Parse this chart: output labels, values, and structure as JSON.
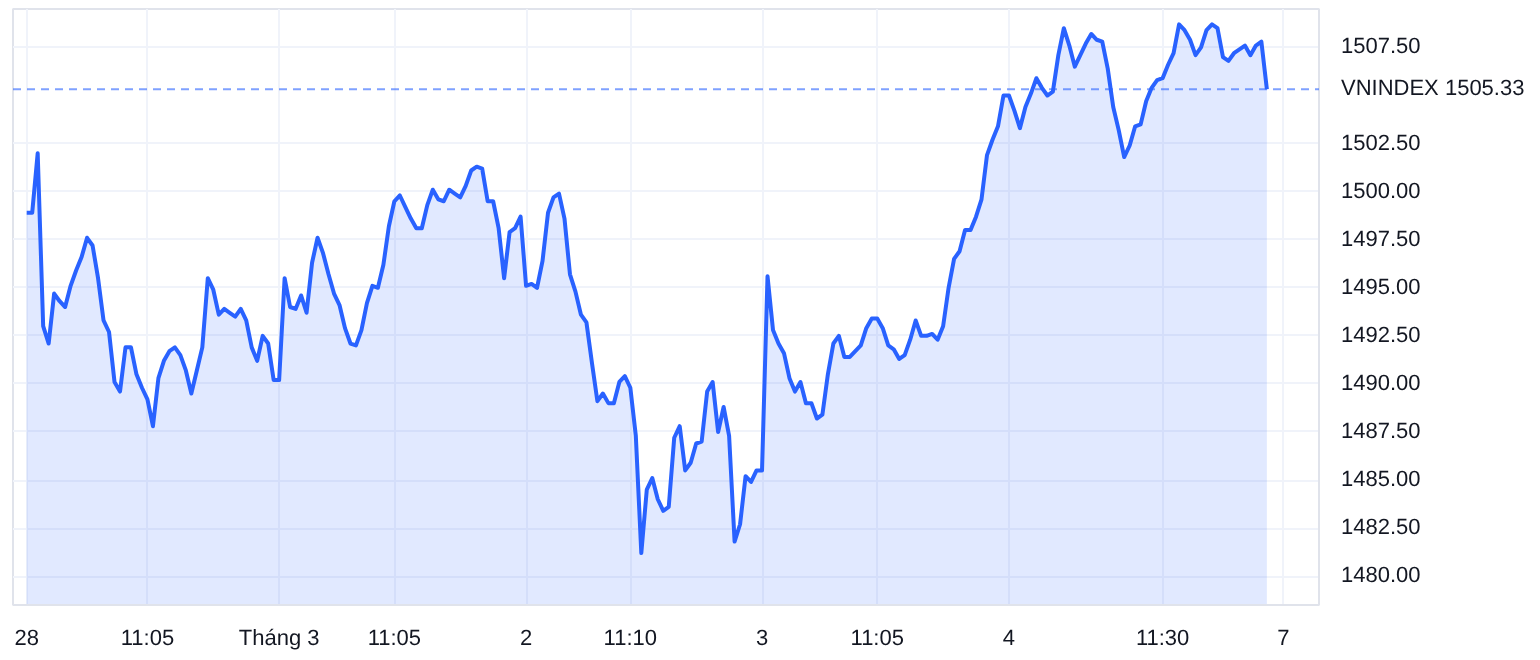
{
  "chart_data": {
    "type": "area",
    "categories": [
      "28",
      null,
      null,
      null,
      null,
      null,
      null,
      null,
      null,
      null,
      null,
      null,
      null,
      null,
      null,
      null,
      null,
      null,
      null,
      null,
      null,
      null,
      "11:05",
      null,
      null,
      null,
      null,
      null,
      null,
      null,
      null,
      null,
      null,
      null,
      null,
      null,
      null,
      null,
      null,
      null,
      null,
      null,
      null,
      null,
      null,
      null,
      "Tháng 3",
      null,
      null,
      null,
      null,
      null,
      null,
      null,
      null,
      null,
      null,
      null,
      null,
      null,
      null,
      null,
      null,
      null,
      null,
      null,
      null,
      "11:05",
      null,
      null,
      null,
      null,
      null,
      null,
      null,
      null,
      null,
      null,
      null,
      null,
      null,
      null,
      null,
      null,
      null,
      null,
      null,
      null,
      null,
      null,
      null,
      "2",
      null,
      null,
      null,
      null,
      null,
      null,
      null,
      null,
      null,
      null,
      null,
      null,
      null,
      null,
      null,
      null,
      null,
      null,
      "11:10",
      null,
      null,
      null,
      null,
      null,
      null,
      null,
      null,
      null,
      null,
      null,
      null,
      null,
      null,
      null,
      null,
      null,
      null,
      null,
      null,
      null,
      null,
      null,
      "3",
      null,
      null,
      null,
      null,
      null,
      null,
      null,
      null,
      null,
      null,
      null,
      null,
      null,
      null,
      null,
      null,
      null,
      null,
      null,
      null,
      "11:05",
      null,
      null,
      null,
      null,
      null,
      null,
      null,
      null,
      null,
      null,
      null,
      null,
      null,
      null,
      null,
      null,
      null,
      null,
      null,
      null,
      null,
      null,
      null,
      "4",
      null,
      null,
      null,
      null,
      null,
      null,
      null,
      null,
      null,
      null,
      null,
      null,
      null,
      null,
      null,
      null,
      null,
      null,
      null,
      null,
      null,
      null,
      null,
      null,
      null,
      null,
      null,
      "11:30",
      null,
      null,
      null,
      null,
      null,
      null,
      null,
      null,
      null,
      null,
      null,
      null,
      null,
      null,
      null,
      null,
      null,
      null,
      null,
      null,
      null,
      "7",
      null,
      null,
      null,
      null,
      null,
      null
    ],
    "series": [
      {
        "color": "#2962ff",
        "values": [
          1498.9,
          1498.9,
          1502.0,
          1493.0,
          1492.1,
          1494.7,
          1494.3,
          1494.0,
          1495.1,
          1495.9,
          1496.6,
          1497.6,
          1497.2,
          1495.5,
          1493.3,
          1492.7,
          1490.1,
          1489.6,
          1491.9,
          1491.9,
          1490.5,
          1489.8,
          1489.2,
          1487.8,
          1490.3,
          1491.2,
          1491.7,
          1491.9,
          1491.5,
          1490.7,
          1489.5,
          1490.7,
          1491.9,
          1495.5,
          1494.9,
          1493.6,
          1493.9,
          1493.7,
          1493.5,
          1493.9,
          1493.3,
          1491.9,
          1491.2,
          1492.5,
          1492.1,
          1490.2,
          1490.2,
          1495.5,
          1494.0,
          1493.9,
          1494.6,
          1493.7,
          1496.3,
          1497.6,
          1496.8,
          1495.7,
          1494.7,
          1494.1,
          1492.9,
          1492.1,
          1492.0,
          1492.8,
          1494.2,
          1495.1,
          1495.0,
          1496.2,
          1498.2,
          1499.5,
          1499.8,
          1499.2,
          1498.6,
          1498.1,
          1498.1,
          1499.3,
          1500.1,
          1499.6,
          1499.5,
          1500.1,
          1499.9,
          1499.7,
          1500.3,
          1501.1,
          1501.3,
          1501.2,
          1499.5,
          1499.5,
          1498.1,
          1495.5,
          1497.9,
          1498.1,
          1498.7,
          1495.1,
          1495.2,
          1495.0,
          1496.4,
          1498.9,
          1499.7,
          1499.9,
          1498.6,
          1495.7,
          1494.8,
          1493.6,
          1493.2,
          1491.1,
          1489.1,
          1489.5,
          1489.0,
          1489.0,
          1490.1,
          1490.4,
          1489.8,
          1487.3,
          1481.2,
          1484.5,
          1485.1,
          1484.0,
          1483.4,
          1483.6,
          1487.2,
          1487.8,
          1485.5,
          1485.9,
          1486.9,
          1487.0,
          1489.6,
          1490.1,
          1487.5,
          1488.8,
          1487.3,
          1481.8,
          1482.7,
          1485.2,
          1484.9,
          1485.5,
          1485.5,
          1495.6,
          1492.8,
          1492.1,
          1491.6,
          1490.3,
          1489.6,
          1490.1,
          1489.0,
          1489.0,
          1488.2,
          1488.4,
          1490.5,
          1492.1,
          1492.5,
          1491.4,
          1491.4,
          1491.7,
          1492.0,
          1492.9,
          1493.4,
          1493.4,
          1492.9,
          1492.0,
          1491.8,
          1491.3,
          1491.5,
          1492.3,
          1493.3,
          1492.5,
          1492.5,
          1492.6,
          1492.3,
          1493.0,
          1495.0,
          1496.5,
          1496.9,
          1498.0,
          1498.0,
          1498.7,
          1499.6,
          1501.9,
          1502.7,
          1503.4,
          1505.0,
          1505.0,
          1504.2,
          1503.3,
          1504.4,
          1505.1,
          1505.9,
          1505.4,
          1505.0,
          1505.2,
          1507.1,
          1508.5,
          1507.6,
          1506.5,
          1507.1,
          1507.7,
          1508.2,
          1507.9,
          1507.8,
          1506.4,
          1504.4,
          1503.2,
          1501.8,
          1502.4,
          1503.4,
          1503.5,
          1504.7,
          1505.4,
          1505.8,
          1505.9,
          1506.6,
          1507.2,
          1508.7,
          1508.4,
          1507.9,
          1507.1,
          1507.5,
          1508.4,
          1508.7,
          1508.5,
          1507.0,
          1506.8,
          1507.2,
          1507.4,
          1507.6,
          1507.1,
          1507.6,
          1507.8,
          1505.33,
          null,
          null,
          null,
          null,
          null,
          null,
          null,
          null,
          null
        ]
      }
    ],
    "ylim": [
      1478.5,
      1509.5
    ],
    "yticks": [
      {
        "value": 1480,
        "label": "1480.00"
      },
      {
        "value": 1482.5,
        "label": "1482.50"
      },
      {
        "value": 1485,
        "label": "1485.00"
      },
      {
        "value": 1487.5,
        "label": "1487.50"
      },
      {
        "value": 1490,
        "label": "1490.00"
      },
      {
        "value": 1492.5,
        "label": "1492.50"
      },
      {
        "value": 1495,
        "label": "1495.00"
      },
      {
        "value": 1497.5,
        "label": "1497.50"
      },
      {
        "value": 1500,
        "label": "1500.00"
      },
      {
        "value": 1502.5,
        "label": "1502.50"
      },
      {
        "value": 1507.5,
        "label": "1507.50"
      }
    ],
    "ref_lines": [
      {
        "axis": "y",
        "value": 1505.33,
        "label": "VNINDEX  1505.33",
        "color": "#2962ff",
        "line_style": "dashed"
      }
    ],
    "grid": true,
    "marker": "none",
    "line_style": "solid"
  }
}
